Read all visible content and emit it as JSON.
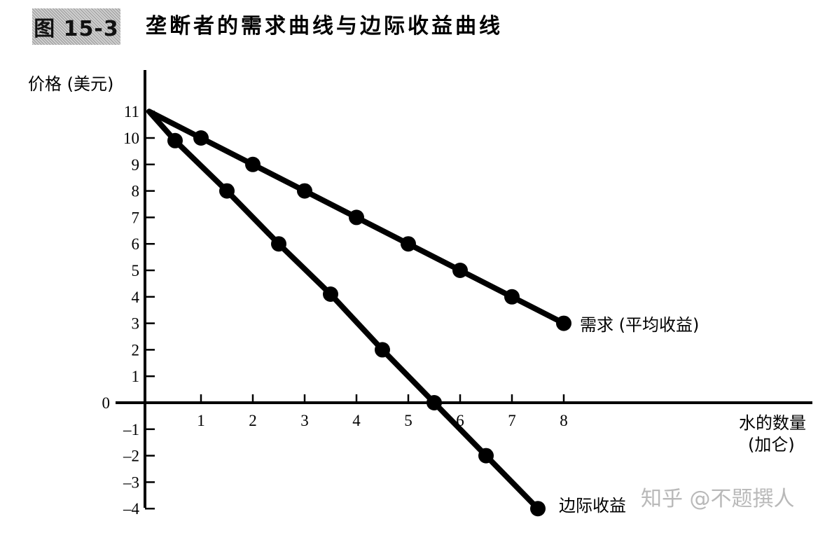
{
  "figure": {
    "label": "图 15-3",
    "title": "垄断者的需求曲线与边际收益曲线"
  },
  "watermark": "知乎 @不题撰人",
  "chart_data": {
    "type": "line",
    "title": "垄断者的需求曲线与边际收益曲线",
    "ylabel": "价格 (美元)",
    "xlabel_line1": "水的数量",
    "xlabel_line2": "(加仑)",
    "xlim": [
      0,
      8
    ],
    "ylim": [
      -4,
      11
    ],
    "x_ticks": [
      1,
      2,
      3,
      4,
      5,
      6,
      7,
      8
    ],
    "y_ticks": [
      11,
      10,
      9,
      8,
      7,
      6,
      5,
      4,
      3,
      2,
      1,
      0,
      -1,
      -2,
      -3,
      -4
    ],
    "y_tick_labels": [
      "11",
      "10",
      "9",
      "8",
      "7",
      "6",
      "5",
      "4",
      "3",
      "2",
      "1",
      "0",
      "–1",
      "–2",
      "–3",
      "–4"
    ],
    "grid": false,
    "series": [
      {
        "name": "需求 (平均收益)",
        "line_start": [
          0,
          11
        ],
        "points": [
          [
            1,
            10
          ],
          [
            2,
            9
          ],
          [
            3,
            8
          ],
          [
            4,
            7
          ],
          [
            5,
            6
          ],
          [
            6,
            5
          ],
          [
            7,
            4
          ],
          [
            8,
            3
          ]
        ],
        "color": "#000000"
      },
      {
        "name": "边际收益",
        "line_start": [
          0,
          11
        ],
        "points": [
          [
            0.5,
            9.9
          ],
          [
            1.5,
            8
          ],
          [
            2.5,
            6
          ],
          [
            3.5,
            4.1
          ],
          [
            4.5,
            2
          ],
          [
            5.5,
            0
          ],
          [
            6.5,
            -2
          ],
          [
            7.5,
            -4
          ]
        ],
        "color": "#000000"
      }
    ]
  }
}
